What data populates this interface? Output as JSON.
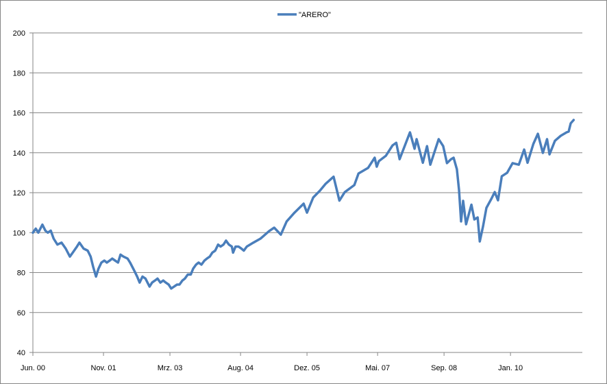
{
  "chart_data": {
    "type": "line",
    "title": "",
    "xlabel": "",
    "ylabel": "",
    "legend": {
      "position": "top-center",
      "entries": [
        "\"ARERO\""
      ]
    },
    "grid": "horizontal",
    "x_unit": "months since Jun. 2000",
    "xlim": [
      0,
      132.3
    ],
    "ylim": [
      40,
      200
    ],
    "y_ticks": [
      40,
      60,
      80,
      100,
      120,
      140,
      160,
      180,
      200
    ],
    "x_ticks": [
      {
        "value": 0,
        "label": "Jun. 00"
      },
      {
        "value": 17,
        "label": "Nov. 01"
      },
      {
        "value": 33,
        "label": "Mrz. 03"
      },
      {
        "value": 50,
        "label": "Aug. 04"
      },
      {
        "value": 66,
        "label": "Dez. 05"
      },
      {
        "value": 83,
        "label": "Mai. 07"
      },
      {
        "value": 99,
        "label": "Sep. 08"
      },
      {
        "value": 115,
        "label": "Jan. 10"
      }
    ],
    "series": [
      {
        "name": "\"ARERO\"",
        "color": "#4a7ebb",
        "x": [
          0,
          0.7,
          1.3,
          2.3,
          3.0,
          3.6,
          4.3,
          5.0,
          5.9,
          6.9,
          7.9,
          8.9,
          9.6,
          10.6,
          11.2,
          12.2,
          13.2,
          13.9,
          14.5,
          15.2,
          15.8,
          16.5,
          17.2,
          17.8,
          18.5,
          19.1,
          19.8,
          20.5,
          21.1,
          21.8,
          22.8,
          23.4,
          24.4,
          25.1,
          25.7,
          26.4,
          27.1,
          28.1,
          28.7,
          29.4,
          30.0,
          30.7,
          31.4,
          32.0,
          32.7,
          33.3,
          34.0,
          34.7,
          35.3,
          36.0,
          36.6,
          37.3,
          38.0,
          38.6,
          39.3,
          39.9,
          40.6,
          41.3,
          41.9,
          42.6,
          43.2,
          43.9,
          44.6,
          45.2,
          45.9,
          46.5,
          47.2,
          47.9,
          48.2,
          48.8,
          49.5,
          50.2,
          50.8,
          51.5,
          53.1,
          54.8,
          56.9,
          58.1,
          59.7,
          61.1,
          63.0,
          65.2,
          66.0,
          67.5,
          69.1,
          70.5,
          72.4,
          73.8,
          75.1,
          77.4,
          78.4,
          80.7,
          82.3,
          82.8,
          83.3,
          85.0,
          86.6,
          87.5,
          88.3,
          89.9,
          90.8,
          91.9,
          92.4,
          93.9,
          94.9,
          95.7,
          97.7,
          98.8,
          99.7,
          100.7,
          101.3,
          102.1,
          102.6,
          103.1,
          103.6,
          104.3,
          105.6,
          106.3,
          107.1,
          107.6,
          108.4,
          109.2,
          110.4,
          111.2,
          112.0,
          112.9,
          114.2,
          115.5,
          117.0,
          118.3,
          119.1,
          120.5,
          121.6,
          122.8,
          123.8,
          124.4,
          125.7,
          127.1,
          128.5,
          129.0,
          129.5,
          130.2
        ],
        "y": [
          100,
          102,
          100,
          104,
          101,
          100,
          101,
          97,
          94,
          95,
          92,
          88,
          90,
          93,
          95,
          92,
          91,
          88,
          83,
          78,
          82,
          85,
          86,
          85,
          86,
          87,
          86,
          85,
          89,
          88,
          87,
          85,
          81,
          78,
          75,
          78,
          77,
          73,
          75,
          76,
          77,
          75,
          76,
          75,
          74,
          72,
          73,
          74,
          74,
          76,
          77,
          79,
          79,
          82,
          84,
          85,
          84,
          86,
          87,
          88,
          90,
          91,
          94,
          93,
          94,
          96,
          94,
          93,
          90,
          93,
          93,
          92,
          91,
          93,
          95,
          97,
          100.8,
          102.5,
          99,
          105.6,
          110,
          114.5,
          110,
          117.6,
          121,
          124.5,
          128,
          116,
          120.3,
          123.8,
          129.6,
          132.4,
          137.5,
          133,
          135.8,
          138.5,
          143.7,
          145,
          136.8,
          145.4,
          150.2,
          142,
          146.8,
          135,
          143.3,
          134,
          146.8,
          143.3,
          134.8,
          136.8,
          137.5,
          131.7,
          121.4,
          105.6,
          115.9,
          104.2,
          114,
          106.6,
          107.6,
          95.6,
          103.2,
          112.4,
          116.9,
          120.3,
          116.2,
          128.2,
          130,
          134.8,
          134,
          141.6,
          135,
          144.4,
          149.5,
          139.9,
          146.8,
          139.2,
          146,
          148.5,
          150.2,
          150.6,
          154.7,
          156.4
        ]
      }
    ]
  }
}
